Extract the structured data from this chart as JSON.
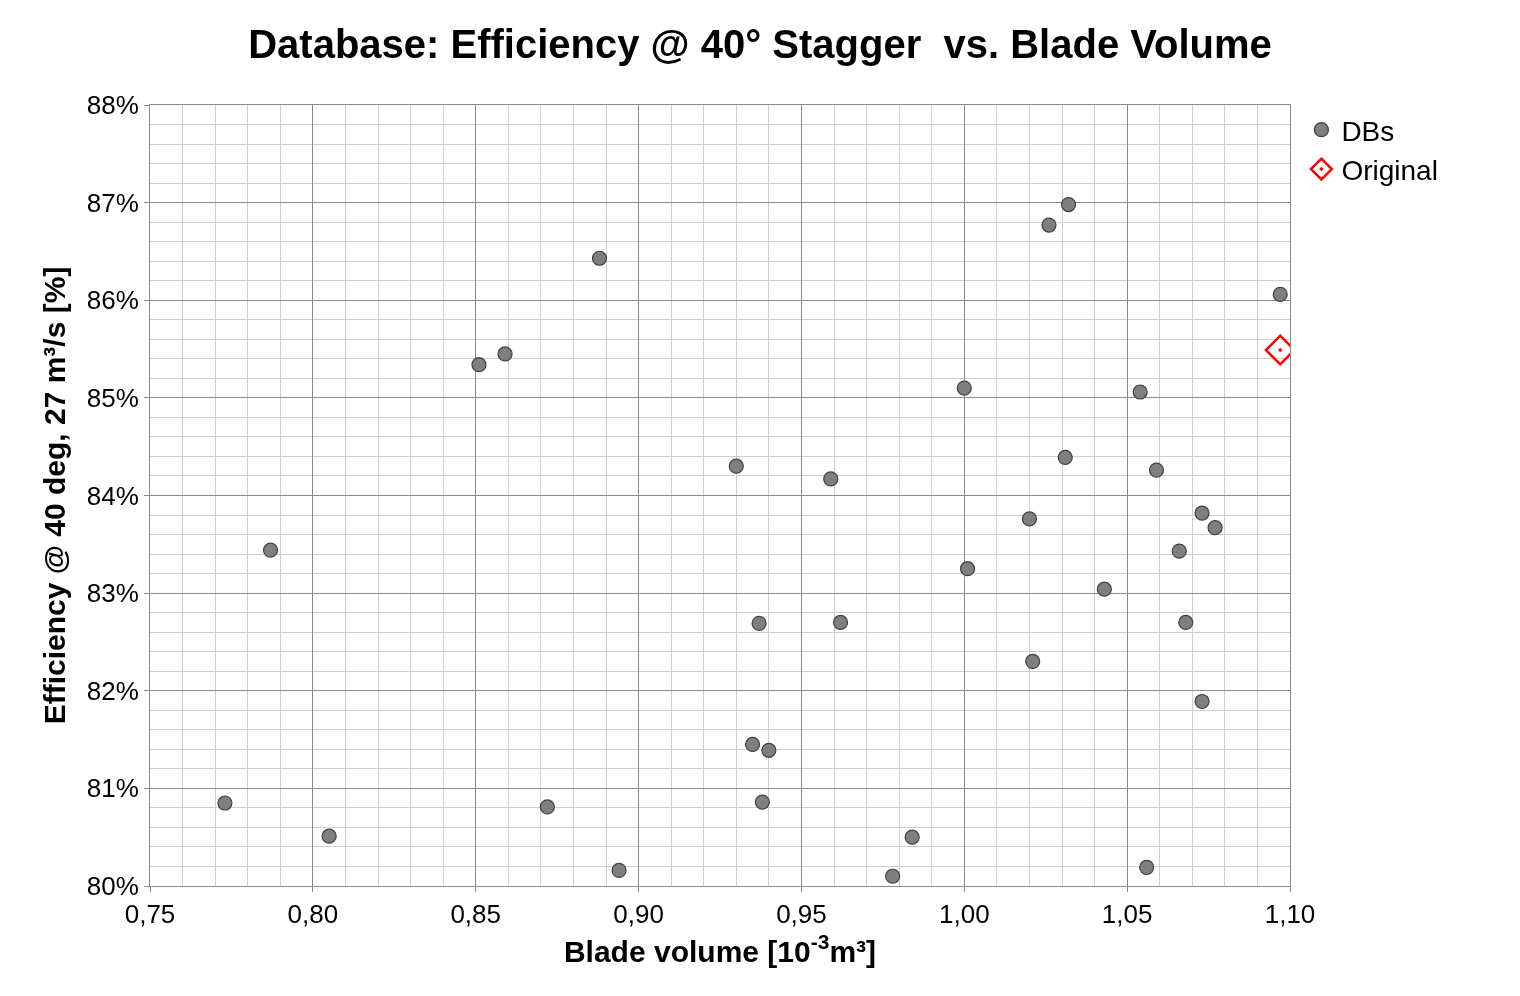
{
  "chart_data": {
    "type": "scatter",
    "title": "Database: Efficiency @ 40° Stagger  vs. Blade Volume",
    "xlabel": "Blade volume [10$^{-3}$m³]",
    "ylabel": "Efficiency @ 40 deg, 27 m³/s [%]",
    "series": [
      {
        "name": "DBs",
        "color": "#7f7f7f",
        "marker": "circle",
        "x": [
          1.032,
          1.026,
          0.888,
          1.097,
          0.851,
          0.859,
          1.0,
          1.054,
          0.93,
          1.031,
          0.959,
          1.059,
          1.02,
          1.073,
          1.077,
          0.787,
          1.066,
          1.001,
          1.043,
          0.937,
          0.962,
          1.068,
          1.021,
          1.073,
          0.935,
          0.94,
          0.773,
          0.938,
          0.872,
          0.805,
          0.984,
          0.894,
          0.978,
          1.056
        ],
        "values": [
          86.98,
          86.77,
          86.43,
          86.06,
          85.34,
          85.45,
          85.1,
          85.06,
          84.3,
          84.39,
          84.17,
          84.26,
          83.76,
          83.82,
          83.67,
          83.44,
          83.43,
          83.25,
          83.04,
          82.69,
          82.7,
          82.7,
          82.3,
          81.89,
          81.45,
          81.39,
          80.85,
          80.86,
          80.81,
          80.51,
          80.5,
          80.16,
          80.1,
          80.19
        ]
      },
      {
        "name": "Original",
        "color": "#ff0000",
        "marker": "diamond",
        "x": [
          1.097
        ],
        "values": [
          85.49
        ]
      }
    ],
    "xlim": [
      0.75,
      1.1
    ],
    "xticks": [
      {
        "value": 0.75,
        "label": "0,75"
      },
      {
        "value": 0.8,
        "label": "0,80"
      },
      {
        "value": 0.85,
        "label": "0,85"
      },
      {
        "value": 0.9,
        "label": "0,90"
      },
      {
        "value": 0.95,
        "label": "0,95"
      },
      {
        "value": 1.0,
        "label": "1,00"
      },
      {
        "value": 1.05,
        "label": "1,05"
      },
      {
        "value": 1.1,
        "label": "1,10"
      }
    ],
    "ylim": [
      80,
      88
    ],
    "yticks": [
      {
        "value": 80,
        "label": "80%"
      },
      {
        "value": 81,
        "label": "81%"
      },
      {
        "value": 82,
        "label": "82%"
      },
      {
        "value": 83,
        "label": "83%"
      },
      {
        "value": 84,
        "label": "84%"
      },
      {
        "value": 85,
        "label": "85%"
      },
      {
        "value": 86,
        "label": "86%"
      },
      {
        "value": 87,
        "label": "87%"
      },
      {
        "value": 88,
        "label": "88%"
      }
    ],
    "grid": true,
    "legend": "top right"
  }
}
